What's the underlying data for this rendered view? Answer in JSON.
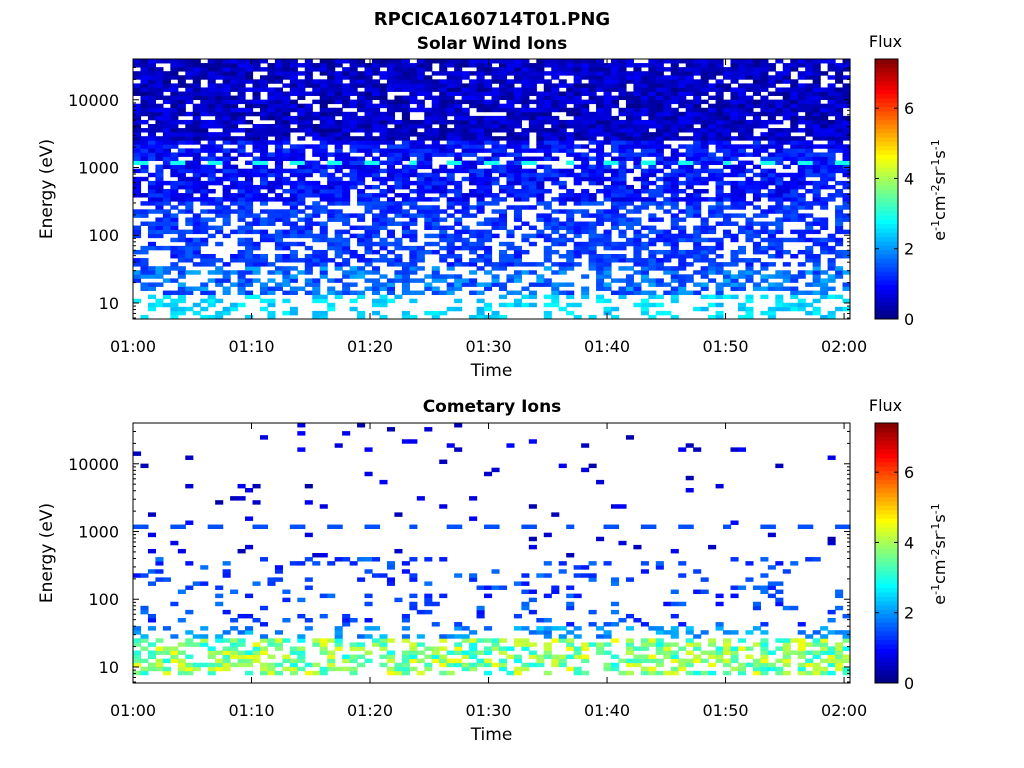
{
  "figure_title": "RPCICA160714T01.PNG",
  "colormap": [
    "#00007f",
    "#0000ff",
    "#007fff",
    "#00ffff",
    "#7fff7f",
    "#ffff00",
    "#ff7f00",
    "#ff0000",
    "#7f0000"
  ],
  "chart_data": [
    {
      "type": "heatmap",
      "title": "Solar Wind Ions",
      "xlabel": "Time",
      "ylabel": "Energy (eV)",
      "x_ticks": [
        "01:00",
        "01:10",
        "01:20",
        "01:30",
        "01:40",
        "01:50",
        "02:00"
      ],
      "xlim_minutes": [
        0,
        60.5
      ],
      "y_scale": "log",
      "ylim": [
        5.8,
        40000
      ],
      "y_ticks": [
        10,
        100,
        1000,
        10000
      ],
      "y_tick_labels": [
        "10",
        "100",
        "1000",
        "10000"
      ],
      "colorbar": {
        "label": "Flux",
        "unit": "eV-1cm-2sr-1s-1",
        "range": [
          0,
          7.4
        ],
        "ticks": [
          0,
          2,
          4,
          6
        ],
        "tick_labels": [
          "0",
          "2",
          "4",
          "6"
        ]
      },
      "bands": [
        {
          "energy_min": 6,
          "energy_max": 14,
          "fill": 0.35,
          "value_range": [
            2.2,
            2.8
          ]
        },
        {
          "energy_min": 14,
          "energy_max": 35,
          "fill": 0.55,
          "value_range": [
            1.2,
            2.2
          ]
        },
        {
          "energy_min": 35,
          "energy_max": 300,
          "fill": 0.6,
          "value_range": [
            1.0,
            1.6
          ]
        },
        {
          "energy_min": 300,
          "energy_max": 2500,
          "fill": 0.75,
          "value_range": [
            0.6,
            1.4
          ]
        },
        {
          "energy_min": 2500,
          "energy_max": 40000,
          "fill": 0.85,
          "value_range": [
            0.1,
            0.9
          ]
        }
      ],
      "highlight_band": {
        "energy_min": 1050,
        "energy_max": 1350,
        "value": 2.9,
        "every_minutes": 3.3
      }
    },
    {
      "type": "heatmap",
      "title": "Cometary Ions",
      "xlabel": "Time",
      "ylabel": "Energy (eV)",
      "x_ticks": [
        "01:00",
        "01:10",
        "01:20",
        "01:30",
        "01:40",
        "01:50",
        "02:00"
      ],
      "xlim_minutes": [
        0,
        60.5
      ],
      "y_scale": "log",
      "ylim": [
        5.8,
        40000
      ],
      "y_ticks": [
        10,
        100,
        1000,
        10000
      ],
      "y_tick_labels": [
        "10",
        "100",
        "1000",
        "10000"
      ],
      "colorbar": {
        "label": "Flux",
        "unit": "eV-1cm-2sr-1s-1",
        "range": [
          0,
          7.4
        ],
        "ticks": [
          0,
          2,
          4,
          6
        ],
        "tick_labels": [
          "0",
          "2",
          "4",
          "6"
        ]
      },
      "bands": [
        {
          "energy_min": 8,
          "energy_max": 25,
          "fill": 0.55,
          "value_range": [
            2.8,
            4.6
          ]
        },
        {
          "energy_min": 25,
          "energy_max": 40,
          "fill": 0.3,
          "value_range": [
            1.6,
            2.4
          ]
        },
        {
          "energy_min": 40,
          "energy_max": 400,
          "fill": 0.12,
          "value_range": [
            1.0,
            1.8
          ]
        },
        {
          "energy_min": 400,
          "energy_max": 40000,
          "fill": 0.03,
          "value_range": [
            0.3,
            1.0
          ]
        }
      ],
      "highlight_band": {
        "energy_min": 1150,
        "energy_max": 1300,
        "value": 1.5,
        "every_minutes": 3.3
      }
    }
  ]
}
